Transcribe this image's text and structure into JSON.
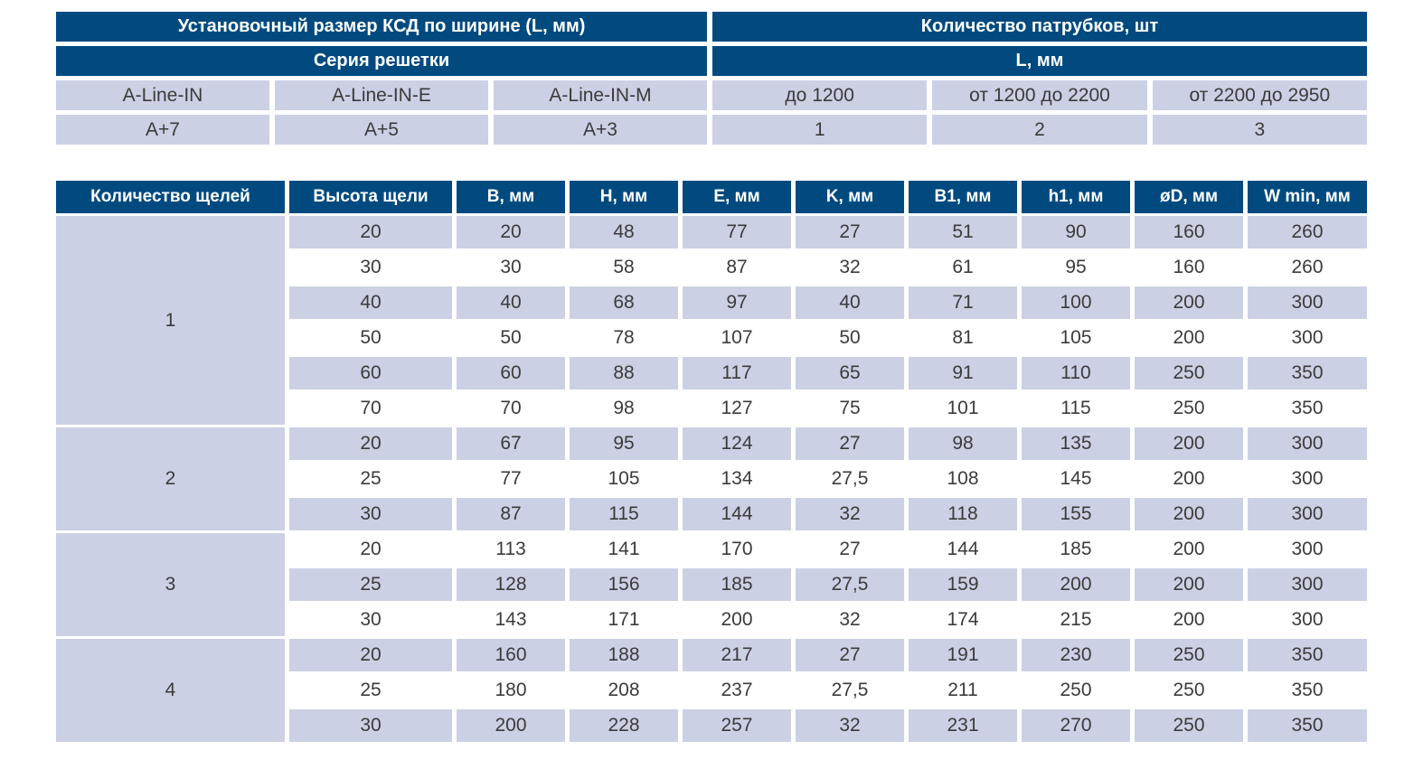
{
  "colors": {
    "header_bg": "#004A80",
    "shaded_cell_bg": "#CBD0E4",
    "cell_text": "#3B3B3B",
    "header_text": "#FFFFFF"
  },
  "top_left_table": {
    "header": "Установочный размер КСД по ширине (L, мм)",
    "subheader": "Серия решетки",
    "rows": [
      [
        "A-Line-IN",
        "A-Line-IN-E",
        "A-Line-IN-M"
      ],
      [
        "A+7",
        "A+5",
        "A+3"
      ]
    ]
  },
  "top_right_table": {
    "header": "Количество патрубков, шт",
    "subheader": "L, мм",
    "rows": [
      [
        "до 1200",
        "от 1200 до 2200",
        "от 2200 до 2950"
      ],
      [
        "1",
        "2",
        "3"
      ]
    ]
  },
  "main": {
    "headers": [
      "Количество щелей",
      "Высота щели",
      "B, мм",
      "H, мм",
      "E, мм",
      "K, мм",
      "B1, мм",
      "h1, мм",
      "øD, мм",
      "W min, мм"
    ],
    "groups": [
      {
        "label": "1",
        "rows": [
          [
            "20",
            "20",
            "48",
            "77",
            "27",
            "51",
            "90",
            "160",
            "260"
          ],
          [
            "30",
            "30",
            "58",
            "87",
            "32",
            "61",
            "95",
            "160",
            "260"
          ],
          [
            "40",
            "40",
            "68",
            "97",
            "40",
            "71",
            "100",
            "200",
            "300"
          ],
          [
            "50",
            "50",
            "78",
            "107",
            "50",
            "81",
            "105",
            "200",
            "300"
          ],
          [
            "60",
            "60",
            "88",
            "117",
            "65",
            "91",
            "110",
            "250",
            "350"
          ],
          [
            "70",
            "70",
            "98",
            "127",
            "75",
            "101",
            "115",
            "250",
            "350"
          ]
        ]
      },
      {
        "label": "2",
        "rows": [
          [
            "20",
            "67",
            "95",
            "124",
            "27",
            "98",
            "135",
            "200",
            "300"
          ],
          [
            "25",
            "77",
            "105",
            "134",
            "27,5",
            "108",
            "145",
            "200",
            "300"
          ],
          [
            "30",
            "87",
            "115",
            "144",
            "32",
            "118",
            "155",
            "200",
            "300"
          ]
        ]
      },
      {
        "label": "3",
        "rows": [
          [
            "20",
            "113",
            "141",
            "170",
            "27",
            "144",
            "185",
            "200",
            "300"
          ],
          [
            "25",
            "128",
            "156",
            "185",
            "27,5",
            "159",
            "200",
            "200",
            "300"
          ],
          [
            "30",
            "143",
            "171",
            "200",
            "32",
            "174",
            "215",
            "200",
            "300"
          ]
        ]
      },
      {
        "label": "4",
        "rows": [
          [
            "20",
            "160",
            "188",
            "217",
            "27",
            "191",
            "230",
            "250",
            "350"
          ],
          [
            "25",
            "180",
            "208",
            "237",
            "27,5",
            "211",
            "250",
            "250",
            "350"
          ],
          [
            "30",
            "200",
            "228",
            "257",
            "32",
            "231",
            "270",
            "250",
            "350"
          ]
        ]
      }
    ]
  }
}
